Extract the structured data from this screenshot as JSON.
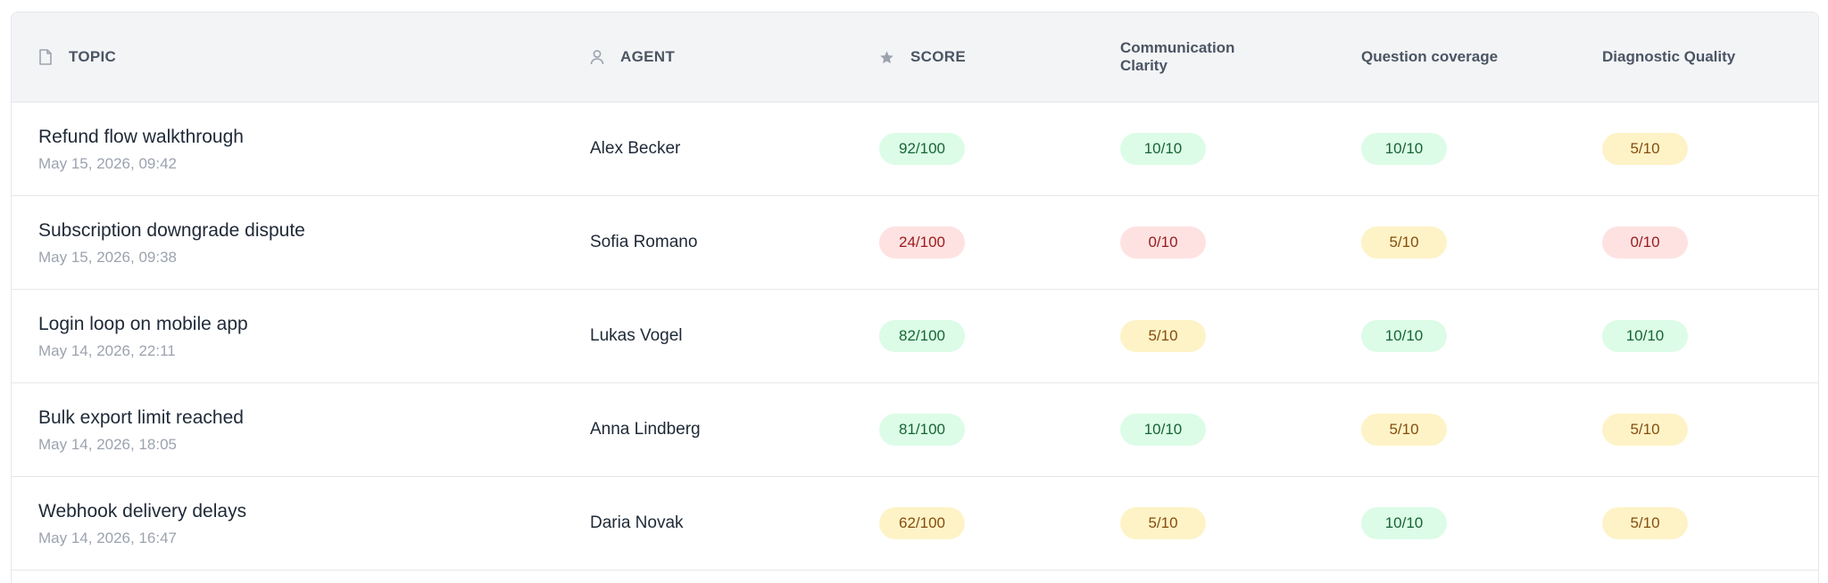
{
  "header": {
    "topic": "TOPIC",
    "agent": "AGENT",
    "score": "SCORE",
    "communication_clarity": "Communication Clarity",
    "question_coverage": "Question coverage",
    "diagnostic_quality": "Diagnostic Quality",
    "icons": {
      "topic": "document-icon",
      "agent": "user-icon",
      "score": "star-icon"
    }
  },
  "colors": {
    "good_bg": "#dcfce7",
    "good_text": "#166534",
    "mid_bg": "#fef3c7",
    "mid_text": "#854d0e",
    "bad_bg": "#fee2e2",
    "bad_text": "#991b1b"
  },
  "rows": [
    {
      "title": "Refund flow walkthrough",
      "date": "May 15, 2026, 09:42",
      "agent": "Alex Becker",
      "score": "92/100",
      "score_level": "good",
      "comm": "10/10",
      "comm_level": "good",
      "qcov": "10/10",
      "qcov_level": "good",
      "diag": "5/10",
      "diag_level": "mid"
    },
    {
      "title": "Subscription downgrade dispute",
      "date": "May 15, 2026, 09:38",
      "agent": "Sofia Romano",
      "score": "24/100",
      "score_level": "bad",
      "comm": "0/10",
      "comm_level": "bad",
      "qcov": "5/10",
      "qcov_level": "mid",
      "diag": "0/10",
      "diag_level": "bad"
    },
    {
      "title": "Login loop on mobile app",
      "date": "May 14, 2026, 22:11",
      "agent": "Lukas Vogel",
      "score": "82/100",
      "score_level": "good",
      "comm": "5/10",
      "comm_level": "mid",
      "qcov": "10/10",
      "qcov_level": "good",
      "diag": "10/10",
      "diag_level": "good"
    },
    {
      "title": "Bulk export limit reached",
      "date": "May 14, 2026, 18:05",
      "agent": "Anna Lindberg",
      "score": "81/100",
      "score_level": "good",
      "comm": "10/10",
      "comm_level": "good",
      "qcov": "5/10",
      "qcov_level": "mid",
      "diag": "5/10",
      "diag_level": "mid"
    },
    {
      "title": "Webhook delivery delays",
      "date": "May 14, 2026, 16:47",
      "agent": "Daria Novak",
      "score": "62/100",
      "score_level": "mid",
      "comm": "5/10",
      "comm_level": "mid",
      "qcov": "10/10",
      "qcov_level": "good",
      "diag": "5/10",
      "diag_level": "mid"
    }
  ]
}
